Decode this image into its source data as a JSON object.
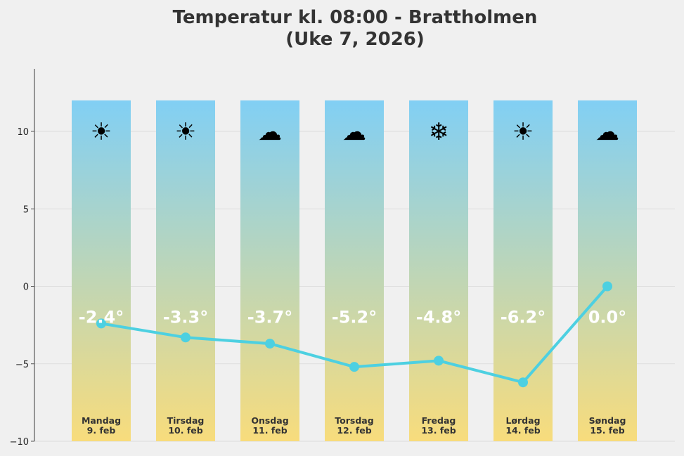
{
  "chart_data": {
    "type": "line",
    "title_line1": "Temperatur kl. 08:00 - Brattholmen",
    "title_line2": "(Uke 7, 2026)",
    "xlabel": "",
    "ylabel": "",
    "ylim": [
      -10,
      14
    ],
    "yticks": [
      -10,
      -5,
      0,
      5,
      10
    ],
    "ytick_labels": [
      "−10",
      "−5",
      "0",
      "5",
      "10"
    ],
    "grid": "horizontal",
    "line_color": "#4dd0e1",
    "bar_gradient": [
      "#81cff4",
      "#f8dc7c"
    ],
    "bar_top": 12,
    "categories": [
      {
        "day": "Mandag",
        "date": "9. feb",
        "value": -2.4,
        "label": "-2.4°",
        "icon": "sun-icon",
        "glyph": "☀"
      },
      {
        "day": "Tirsdag",
        "date": "10. feb",
        "value": -3.3,
        "label": "-3.3°",
        "icon": "sun-icon",
        "glyph": "☀"
      },
      {
        "day": "Onsdag",
        "date": "11. feb",
        "value": -3.7,
        "label": "-3.7°",
        "icon": "cloud-icon",
        "glyph": "☁"
      },
      {
        "day": "Torsdag",
        "date": "12. feb",
        "value": -5.2,
        "label": "-5.2°",
        "icon": "cloud-icon",
        "glyph": "☁"
      },
      {
        "day": "Fredag",
        "date": "13. feb",
        "value": -4.8,
        "label": "-4.8°",
        "icon": "snowflake-icon",
        "glyph": "❄"
      },
      {
        "day": "Lørdag",
        "date": "14. feb",
        "value": -6.2,
        "label": "-6.2°",
        "icon": "sun-icon",
        "glyph": "☀"
      },
      {
        "day": "Søndag",
        "date": "15. feb",
        "value": 0.0,
        "label": "0.0°",
        "icon": "cloud-icon",
        "glyph": "☁"
      }
    ]
  }
}
